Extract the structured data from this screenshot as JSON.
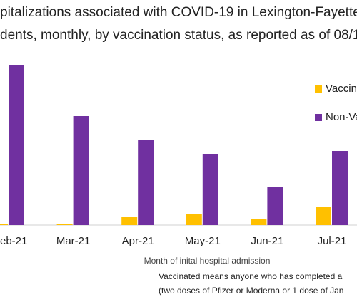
{
  "chart_data": {
    "type": "bar",
    "title": [
      "pitalizations associated with COVID-19 in Lexington-Fayette Cou",
      "dents, monthly, by vaccination status, as reported as of  08/11/"
    ],
    "categories": [
      "eb-21",
      "Mar-21",
      "Apr-21",
      "May-21",
      "Jun-21",
      "Jul-21"
    ],
    "series": [
      {
        "name": "Vaccin",
        "color": "#FFC000",
        "values": [
          1,
          1,
          11,
          15,
          9,
          26
        ]
      },
      {
        "name": "Non-Va",
        "color": "#7030A0",
        "values": [
          225,
          153,
          119,
          100,
          54,
          104
        ]
      }
    ],
    "x_label": "Month of inital hospital admission",
    "notes": [
      "Vaccinated means anyone who has completed a",
      "(two doses of Pfizer or Moderna or 1 dose of Jan"
    ]
  }
}
